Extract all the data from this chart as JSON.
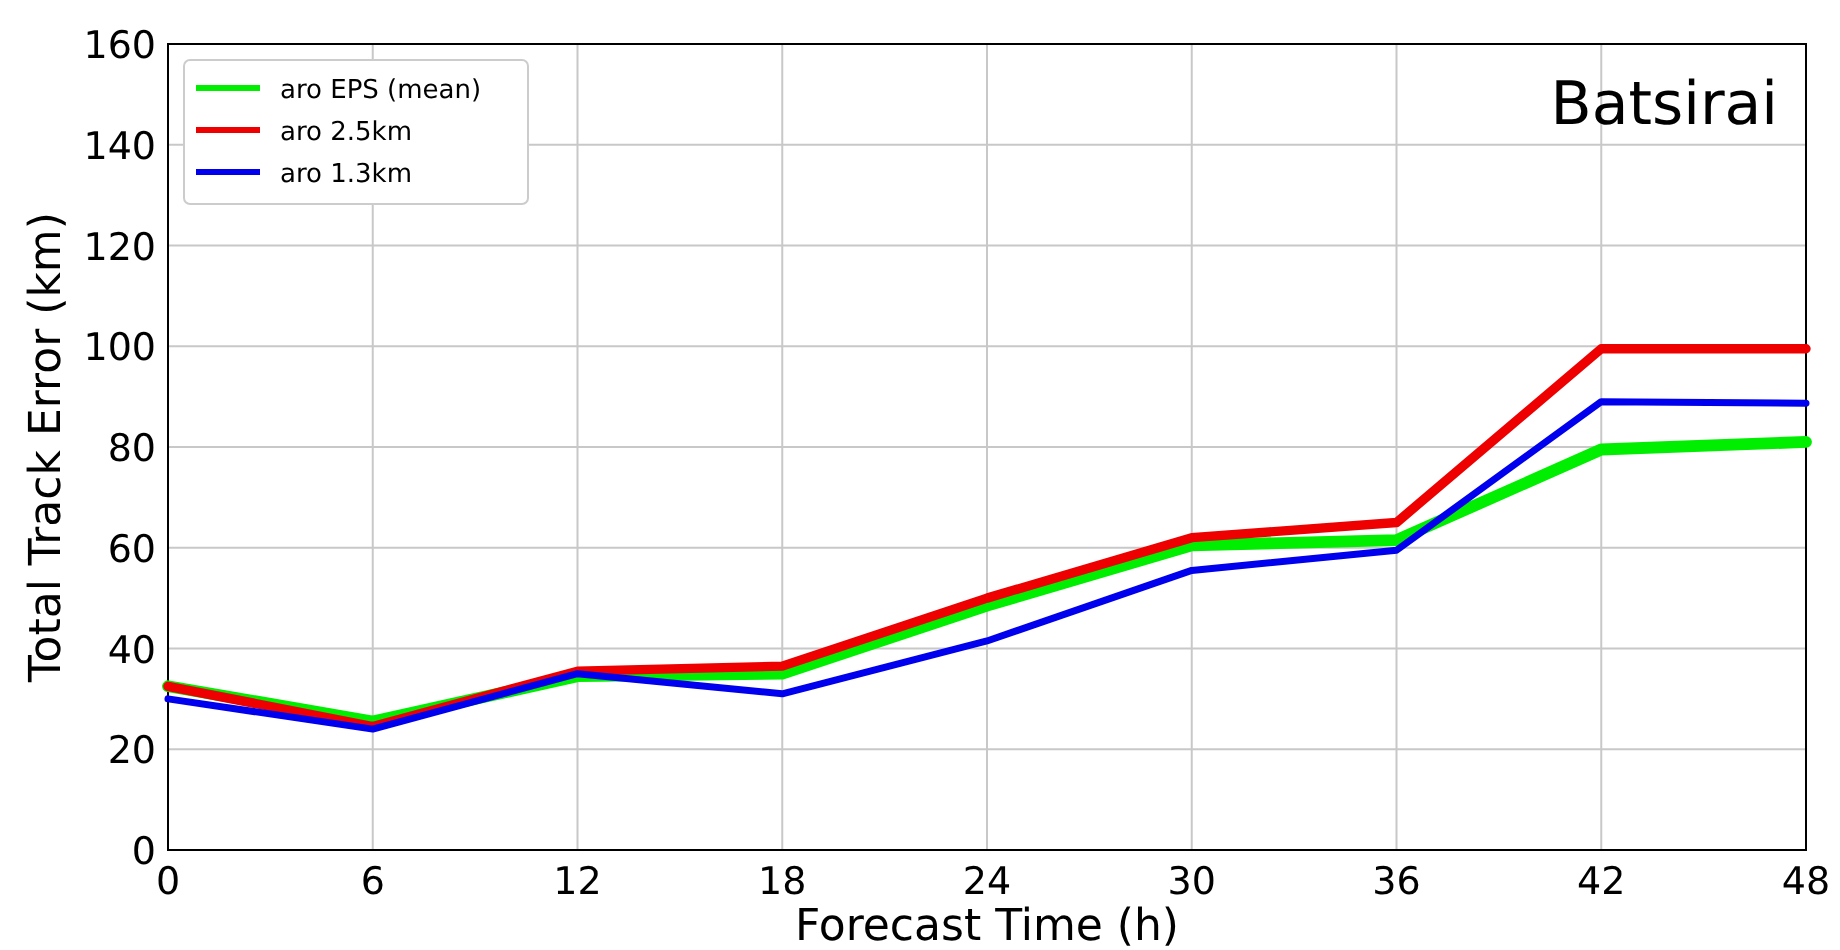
{
  "chart_data": {
    "type": "line",
    "xlabel": "Forecast Time (h)",
    "ylabel": "Total Track Error (km)",
    "annotations": [
      "Batsirai"
    ],
    "x": [
      0,
      6,
      12,
      18,
      24,
      30,
      36,
      42,
      48
    ],
    "series": [
      {
        "name": "aro EPS (mean)",
        "color": "#00ee00",
        "values": [
          32.5,
          25.5,
          34.5,
          35,
          48.5,
          60.5,
          61.5,
          79.5,
          81
        ]
      },
      {
        "name": "aro 2.5km",
        "color": "#ee0000",
        "values": [
          32.5,
          24.5,
          35.5,
          36.5,
          50,
          62,
          65,
          99.5,
          99.5
        ]
      },
      {
        "name": "aro 1.3km",
        "color": "#0000ee",
        "values": [
          30,
          24,
          35,
          31,
          41.5,
          55.5,
          59.5,
          89,
          88.7
        ]
      }
    ],
    "xlim": [
      0,
      48
    ],
    "xticks": [
      0,
      6,
      12,
      18,
      24,
      30,
      36,
      42,
      48
    ],
    "ylim": [
      0,
      160
    ],
    "yticks": [
      0,
      20,
      40,
      60,
      80,
      100,
      120,
      140,
      160
    ],
    "grid": true,
    "legend": "top left",
    "marker": "none",
    "line_style": "solid"
  }
}
